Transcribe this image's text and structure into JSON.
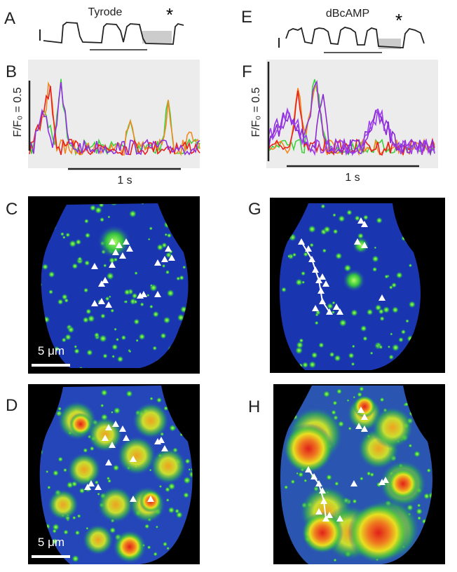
{
  "panels": {
    "A": {
      "label": "A",
      "condition": "Tyrode",
      "marker": "*"
    },
    "B": {
      "label": "B",
      "y_scale": "F/F₀ = 0.5",
      "x_scale": "1 s"
    },
    "C": {
      "label": "C",
      "scale_bar": "5 μm"
    },
    "D": {
      "label": "D",
      "scale_bar": "5 μm"
    },
    "E": {
      "label": "E",
      "condition": "dBcAMP",
      "marker": "*"
    },
    "F": {
      "label": "F",
      "y_scale": "F/F₀ = 0.5",
      "x_scale": "1 s"
    },
    "G": {
      "label": "G"
    },
    "H": {
      "label": "H"
    }
  }
}
